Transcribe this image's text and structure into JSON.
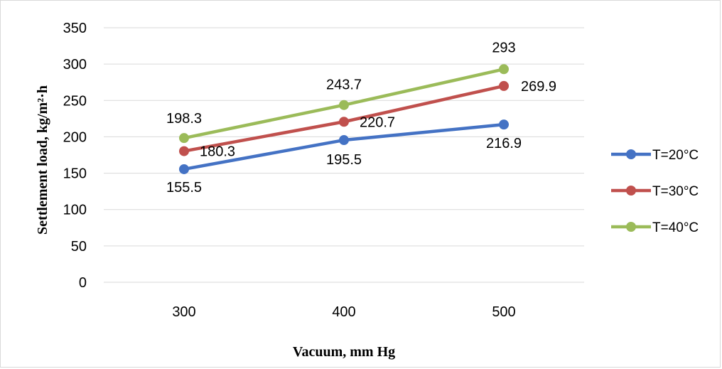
{
  "chart_data": {
    "type": "line",
    "x": [
      300,
      400,
      500
    ],
    "categories": [
      "300",
      "400",
      "500"
    ],
    "xlabel": "Vacuum, mm Hg",
    "ylabel": "Settlement load, kg/m²·h",
    "ylim": [
      0,
      350
    ],
    "yticks": [
      "0",
      "50",
      "100",
      "150",
      "200",
      "250",
      "300",
      "350"
    ],
    "grid": true,
    "legend_position": "right",
    "series": [
      {
        "name": "T=20°C",
        "color": "#4472c4",
        "values": [
          155.5,
          195.5,
          216.9
        ],
        "labels": [
          "155.5",
          "195.5",
          "216.9"
        ]
      },
      {
        "name": "T=30°C",
        "color": "#c0504d",
        "values": [
          180.3,
          220.7,
          269.9
        ],
        "labels": [
          "180.3",
          "220.7",
          "269.9"
        ]
      },
      {
        "name": "T=40°C",
        "color": "#9bbb59",
        "values": [
          198.3,
          243.7,
          293
        ],
        "labels": [
          "198.3",
          "243.7",
          "293"
        ]
      }
    ]
  }
}
